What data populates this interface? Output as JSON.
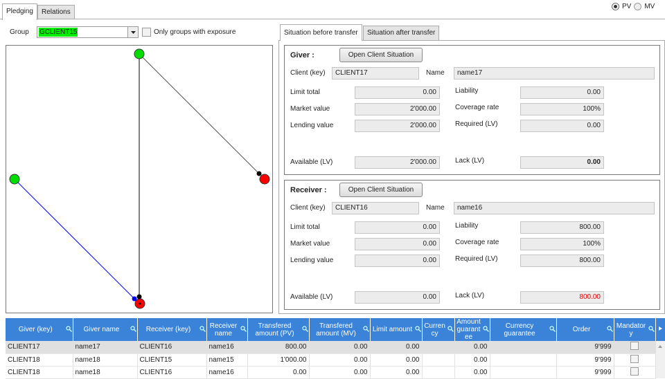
{
  "tabs": [
    "Pledging",
    "Relations"
  ],
  "mode": {
    "options": [
      "PV",
      "MV"
    ],
    "selected": "PV"
  },
  "group": {
    "label": "Group",
    "value": "GCLIENT15",
    "exposure_label": "Only groups with exposure",
    "exposure_checked": false
  },
  "graph": {
    "nodes": [
      {
        "color": "#00dd00"
      },
      {
        "color": "#00dd00"
      },
      {
        "color": "#ff0000"
      },
      {
        "color": "#ff0000"
      }
    ],
    "edge_colors": [
      "#000000",
      "#555555",
      "#0000ff"
    ]
  },
  "situation_tabs": [
    "Situation before transfer",
    "Situation after transfer"
  ],
  "giver": {
    "title": "Giver :",
    "button": "Open Client Situation",
    "client_label": "Client (key)",
    "client": "CLIENT17",
    "name_label": "Name",
    "name": "name17",
    "left": [
      {
        "label": "Limit total",
        "value": "0.00"
      },
      {
        "label": "Market value",
        "value": "2'000.00"
      },
      {
        "label": "Lending value",
        "value": "2'000.00"
      },
      {
        "label": "Available (LV)",
        "value": "2'000.00"
      }
    ],
    "right": [
      {
        "label": "Liability",
        "value": "0.00"
      },
      {
        "label": "Coverage rate",
        "value": "100%"
      },
      {
        "label": "Required (LV)",
        "value": "0.00"
      },
      {
        "label": "Lack (LV)",
        "value": "0.00"
      }
    ]
  },
  "receiver": {
    "title": "Receiver :",
    "button": "Open Client Situation",
    "client_label": "Client (key)",
    "client": "CLIENT16",
    "name_label": "Name",
    "name": "name16",
    "left": [
      {
        "label": "Limit total",
        "value": "0.00"
      },
      {
        "label": "Market value",
        "value": "0.00"
      },
      {
        "label": "Lending value",
        "value": "0.00"
      },
      {
        "label": "Available (LV)",
        "value": "0.00"
      }
    ],
    "right": [
      {
        "label": "Liability",
        "value": "800.00"
      },
      {
        "label": "Coverage rate",
        "value": "100%"
      },
      {
        "label": "Required (LV)",
        "value": "800.00"
      },
      {
        "label": "Lack (LV)",
        "value": "800.00"
      }
    ]
  },
  "table": {
    "columns": [
      "Giver (key)",
      "Giver name",
      "Receiver (key)",
      "Receiver name",
      "Transfered amount (PV)",
      "Transfered amount (MV)",
      "Limit amount",
      "Currency",
      "Amount guarantee",
      "Currency guarantee",
      "Order",
      "Mandatory"
    ],
    "rows": [
      [
        "CLIENT17",
        "name17",
        "CLIENT16",
        "name16",
        "800.00",
        "0.00",
        "0.00",
        "",
        "0.00",
        "",
        "9'999",
        false
      ],
      [
        "CLIENT18",
        "name18",
        "CLIENT15",
        "name15",
        "1'000.00",
        "0.00",
        "0.00",
        "",
        "0.00",
        "",
        "9'999",
        false
      ],
      [
        "CLIENT18",
        "name18",
        "CLIENT16",
        "name16",
        "0.00",
        "0.00",
        "0.00",
        "",
        "0.00",
        "",
        "9'999",
        false
      ]
    ]
  },
  "colors": {
    "header": "#3a83d8",
    "lack": "#e00000",
    "group_highlight": "#00ee00"
  }
}
